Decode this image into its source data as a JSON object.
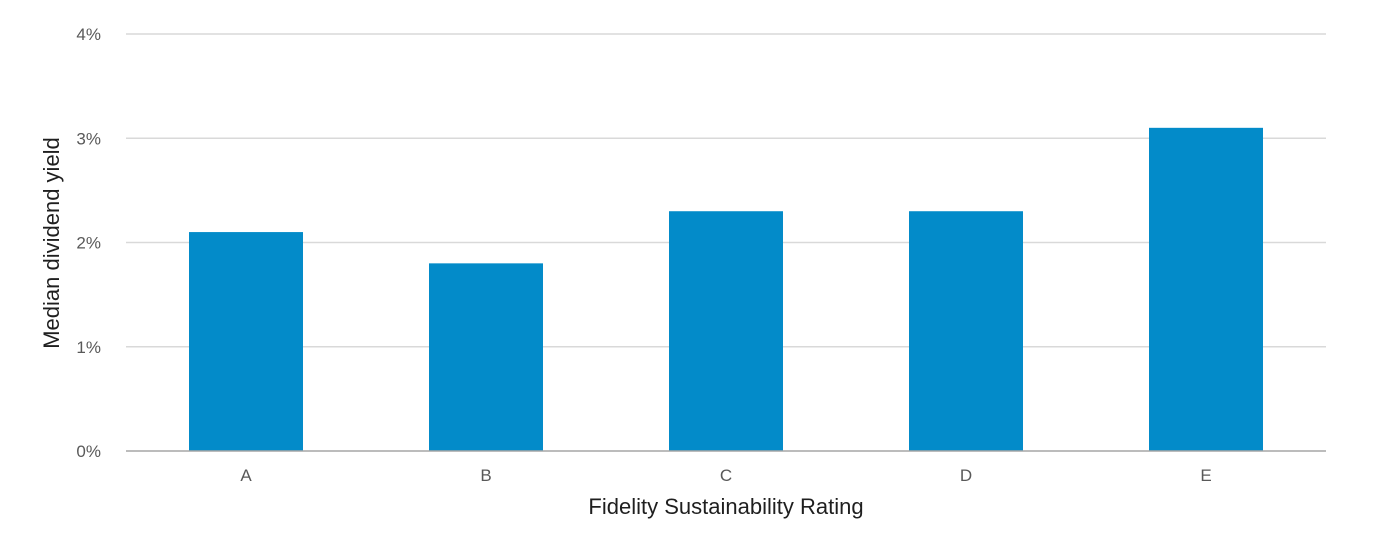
{
  "chart_data": {
    "type": "bar",
    "title": "",
    "categories": [
      "A",
      "B",
      "C",
      "D",
      "E"
    ],
    "values": [
      2.1,
      1.8,
      2.3,
      2.3,
      3.1
    ],
    "xlabel": "Fidelity Sustainability Rating",
    "ylabel": "Median dividend yield",
    "ylim": [
      0,
      4
    ],
    "yticks": [
      0,
      1,
      2,
      3,
      4
    ],
    "ytick_labels": [
      "0%",
      "1%",
      "2%",
      "3%",
      "4%"
    ],
    "grid": true,
    "legend": "none",
    "bar_color": "#038bc9",
    "grid_color": "#d9d9d9",
    "axis_color": "#a6a6a6"
  }
}
